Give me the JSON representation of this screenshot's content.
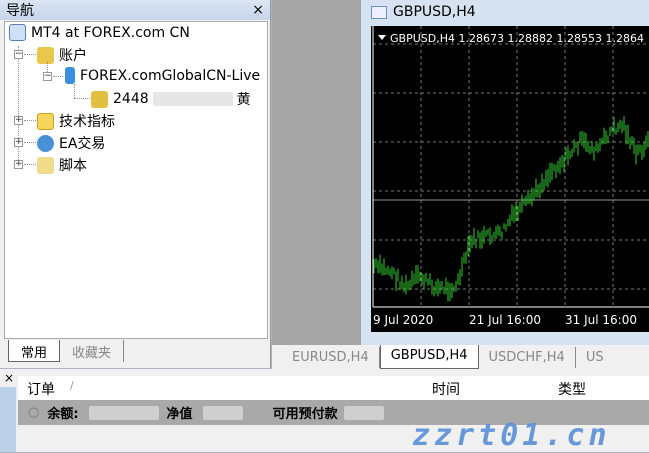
{
  "navigator": {
    "title": "导航",
    "close": "×",
    "root": "MT4 at FOREX.com CN",
    "accounts": "账户",
    "server": "FOREX.comGlobalCN-Live",
    "account_visible": "2448",
    "account_name_visible": "黄",
    "indicators": "技术指标",
    "experts": "EA交易",
    "scripts": "脚本",
    "tabs": [
      "常用",
      "收藏夹"
    ]
  },
  "chart_window": {
    "title": "GBPUSD,H4",
    "info": {
      "symbol": "GBPUSD,H4",
      "open": "1.28673",
      "high": "1.28882",
      "low": "1.28553",
      "close": "1.2864"
    },
    "x_labels": [
      "9 Jul 2020",
      "21 Jul 16:00",
      "31 Jul 16:00"
    ],
    "bar_color": "#32cd32"
  },
  "chart_tabs": [
    "EURUSD,H4",
    "GBPUSD,H4",
    "USDCHF,H4",
    "US"
  ],
  "chart_tab_active": 1,
  "terminal": {
    "close": "×",
    "columns": {
      "order": "订单",
      "sort": "/",
      "time": "时间",
      "type": "类型"
    },
    "summary": {
      "balance": "余额:",
      "equity": "净值",
      "free_margin": "可用预付款"
    }
  },
  "watermark": "zzrt01.cn"
}
